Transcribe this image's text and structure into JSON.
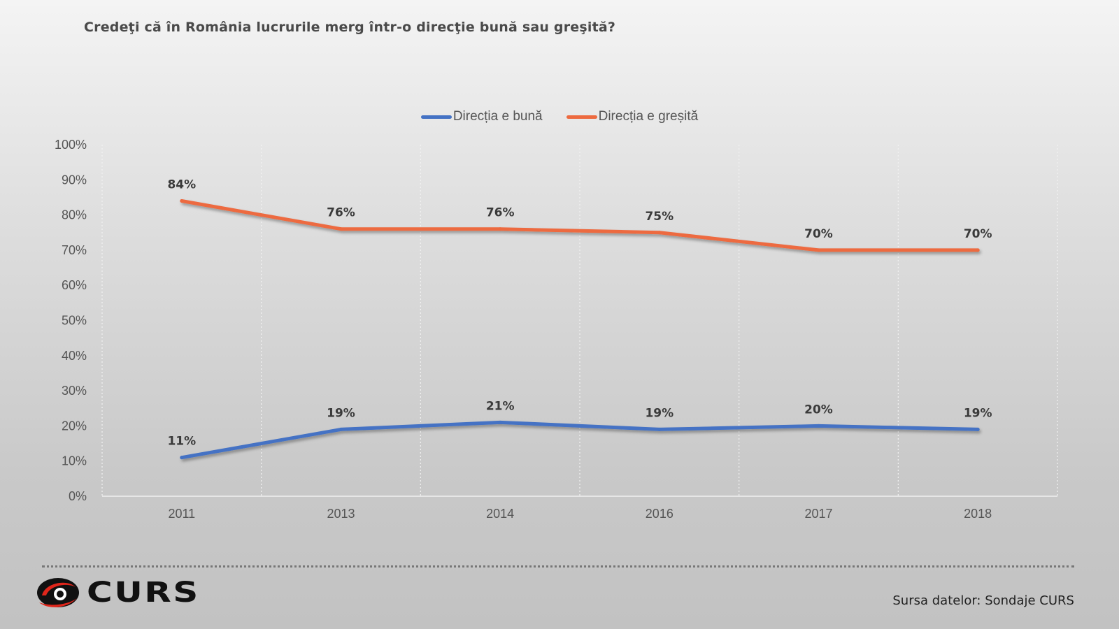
{
  "colors": {
    "buna": "#4472c4",
    "gresita": "#ed6a3f"
  },
  "chart_data": {
    "type": "line",
    "title": "Credeţi că în România lucrurile merg într-o direcţie bună sau greşită?",
    "categories": [
      "2011",
      "2013",
      "2014",
      "2016",
      "2017",
      "2018"
    ],
    "series": [
      {
        "name": "Direcția e bună",
        "values": [
          11,
          19,
          21,
          19,
          20,
          19
        ],
        "labels": [
          "11%",
          "19%",
          "21%",
          "19%",
          "20%",
          "19%"
        ]
      },
      {
        "name": "Direcția e greșită",
        "values": [
          84,
          76,
          76,
          75,
          70,
          70
        ],
        "labels": [
          "84%",
          "76%",
          "76%",
          "75%",
          "70%",
          "70%"
        ]
      }
    ],
    "ylim": [
      0,
      100
    ],
    "yticks": [
      0,
      10,
      20,
      30,
      40,
      50,
      60,
      70,
      80,
      90,
      100
    ],
    "ytick_labels": [
      "0%",
      "10%",
      "20%",
      "30%",
      "40%",
      "50%",
      "60%",
      "70%",
      "80%",
      "90%",
      "100%"
    ],
    "legend": "top",
    "grid": "vertical-dotted"
  },
  "footer": {
    "logo_text": "CURS",
    "source": "Sursa datelor: Sondaje CURS"
  }
}
